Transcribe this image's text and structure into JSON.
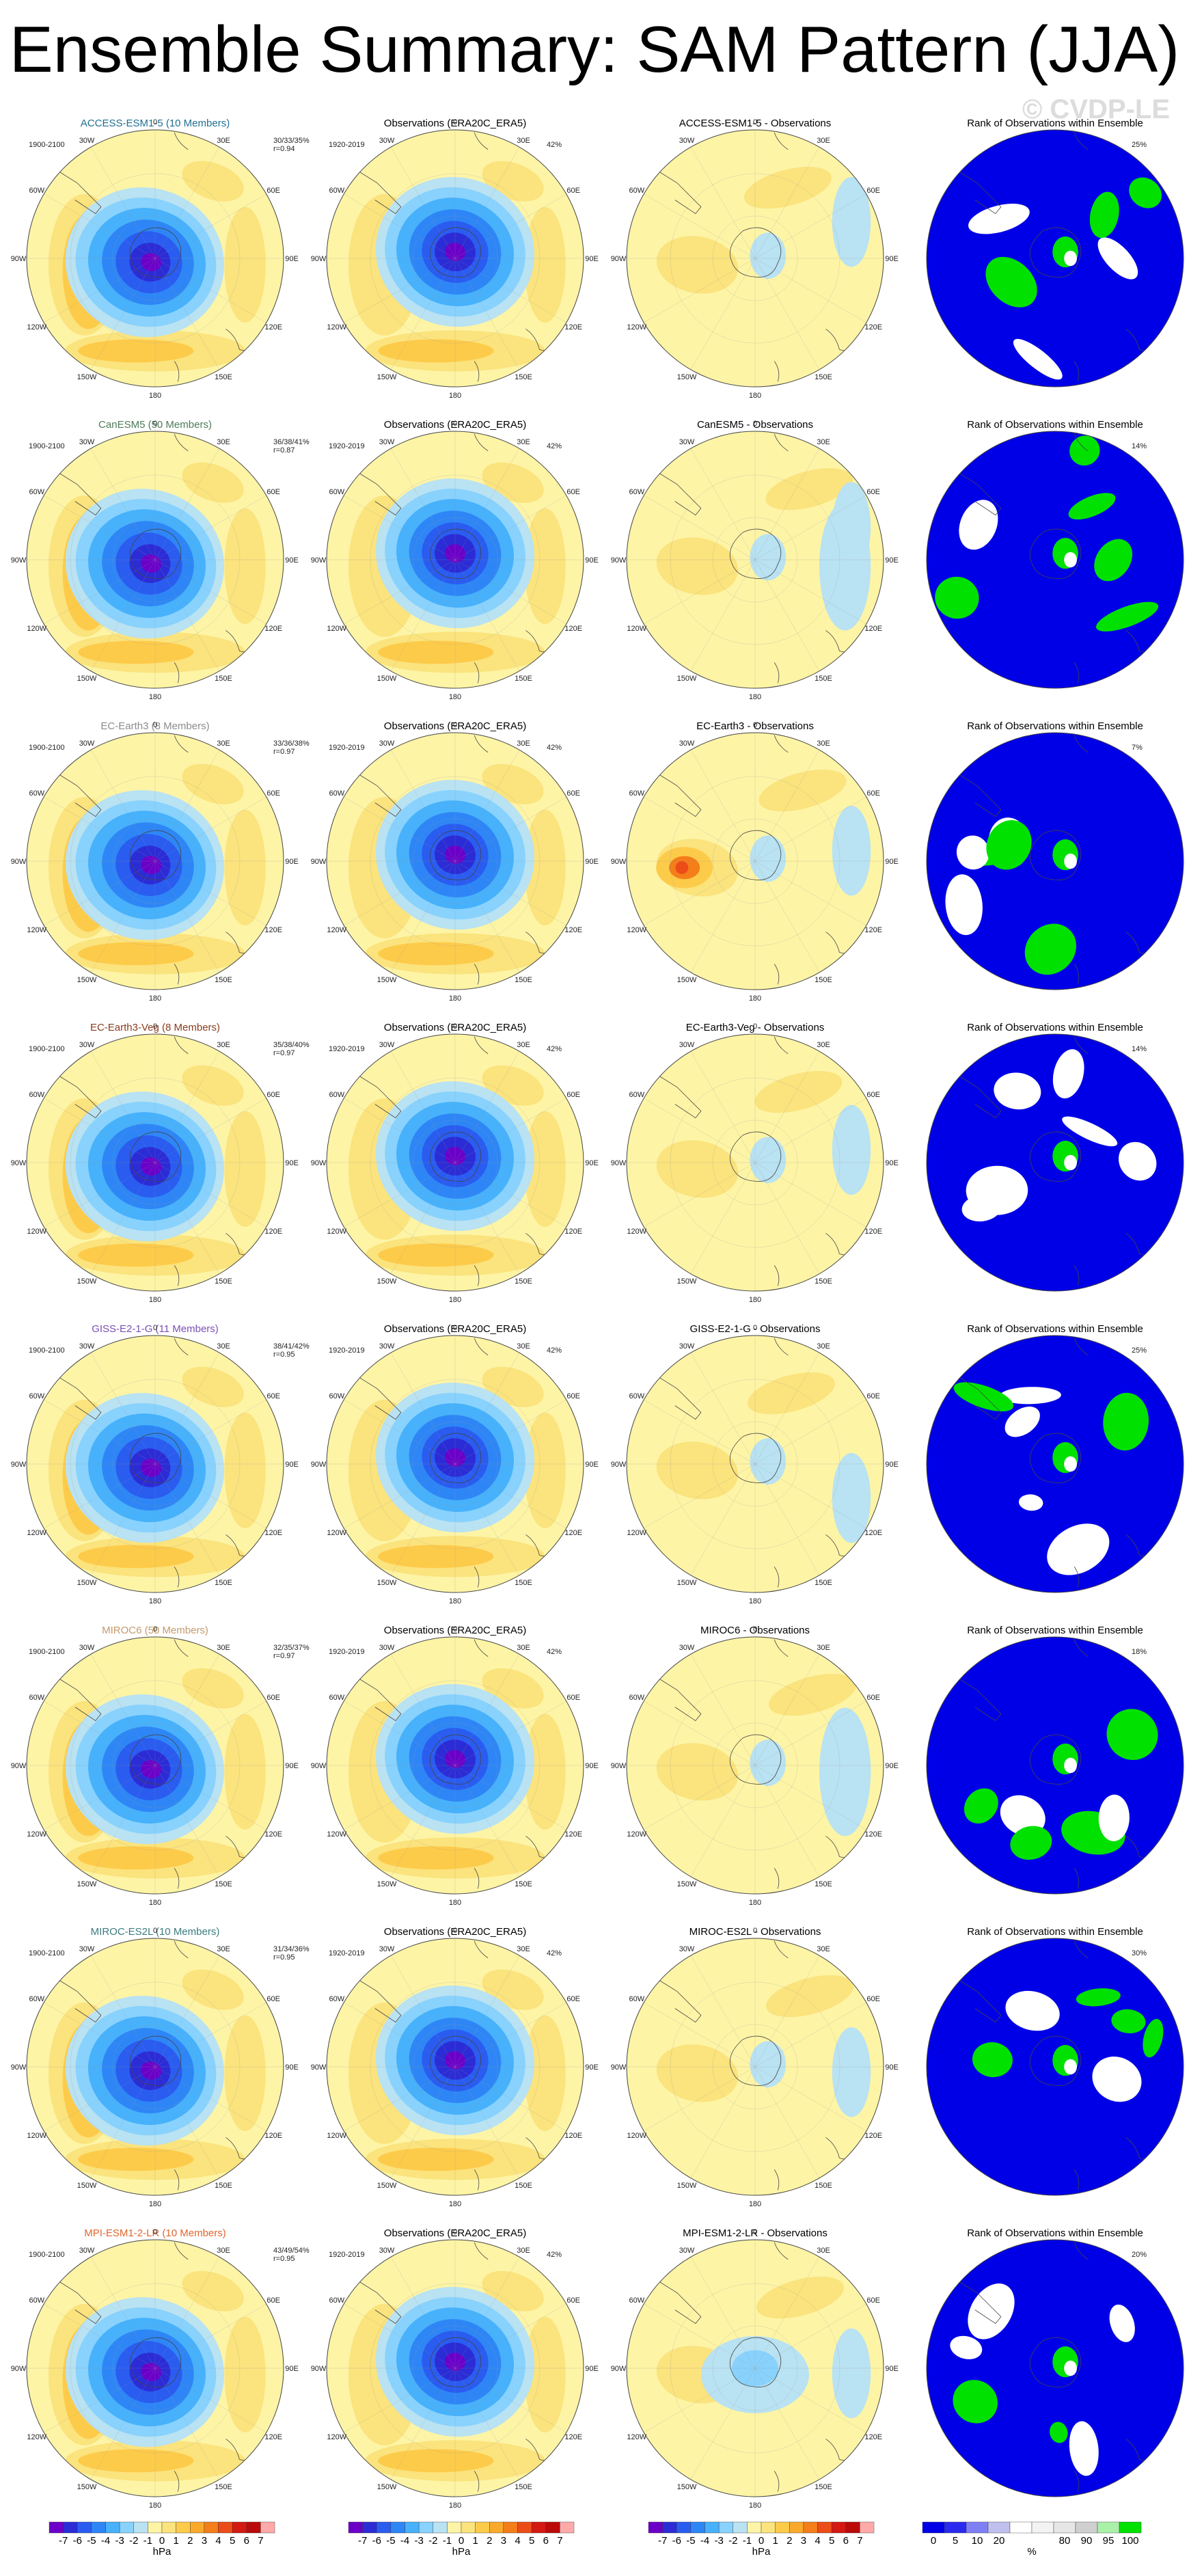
{
  "title": "Ensemble Summary: SAM Pattern (JJA)",
  "watermark": "© CVDP-LE",
  "colors": {
    "pattern_levels": [
      "#6b00c9",
      "#2c2cd6",
      "#2a5cf0",
      "#2e86f6",
      "#47b1fb",
      "#88d2fd",
      "#b9e2f2",
      "#fdf4a6",
      "#fbe37d",
      "#fdcb4a",
      "#faaa2a",
      "#f47e1a",
      "#ec4c17",
      "#d41812",
      "#bb0a0a",
      "#ffa9a9"
    ],
    "rank_levels": [
      "#0000e6",
      "#2a2aef",
      "#7f7ff4",
      "#c0c0ee",
      "#ffffff",
      "#f3f3f3",
      "#e6e6e6",
      "#cfcfcf",
      "#a9f0a9",
      "#00e100"
    ],
    "background": "#fdf4a6",
    "ocean_alt": "#b9e2f2"
  },
  "longitude_labels": [
    "0",
    "30E",
    "60E",
    "90E",
    "120E",
    "150E",
    "180",
    "150W",
    "120W",
    "90W",
    "60W",
    "30W"
  ],
  "obs_title": "Observations (ERA20C_ERA5)",
  "obs_period": "1920-2019",
  "obs_pct": "42%",
  "model_period": "1900-2100",
  "rank_title": "Rank of Observations within Ensemble",
  "rows": [
    {
      "model_title": "ACCESS-ESM1-5 (10 Members)",
      "title_color": "#1f6f91",
      "stats1": "30/33/35%",
      "stats2": "r=0.94",
      "diff_title": "ACCESS-ESM1-5 - Observations",
      "rank_pct": "25%"
    },
    {
      "model_title": "CanESM5 (50 Members)",
      "title_color": "#4c7a58",
      "stats1": "36/38/41%",
      "stats2": "r=0.87",
      "diff_title": "CanESM5 - Observations",
      "rank_pct": "14%"
    },
    {
      "model_title": "EC-Earth3 (8 Members)",
      "title_color": "#8c8c8c",
      "stats1": "33/36/38%",
      "stats2": "r=0.97",
      "diff_title": "EC-Earth3 - Observations",
      "rank_pct": "7%"
    },
    {
      "model_title": "EC-Earth3-Veg (8 Members)",
      "title_color": "#8a3c1e",
      "stats1": "35/38/40%",
      "stats2": "r=0.97",
      "diff_title": "EC-Earth3-Veg - Observations",
      "rank_pct": "14%"
    },
    {
      "model_title": "GISS-E2-1-G (11 Members)",
      "title_color": "#7a4fb5",
      "stats1": "38/41/42%",
      "stats2": "r=0.95",
      "diff_title": "GISS-E2-1-G - Observations",
      "rank_pct": "25%"
    },
    {
      "model_title": "MIROC6 (50 Members)",
      "title_color": "#c49a6c",
      "stats1": "32/35/37%",
      "stats2": "r=0.97",
      "diff_title": "MIROC6 - Observations",
      "rank_pct": "18%"
    },
    {
      "model_title": "MIROC-ES2L (10 Members)",
      "title_color": "#3b7c80",
      "stats1": "31/34/36%",
      "stats2": "r=0.95",
      "diff_title": "MIROC-ES2L - Observations",
      "rank_pct": "30%"
    },
    {
      "model_title": "MPI-ESM1-2-LR (10 Members)",
      "title_color": "#e0662f",
      "stats1": "43/49/54%",
      "stats2": "r=0.95",
      "diff_title": "MPI-ESM1-2-LR - Observations",
      "rank_pct": "20%"
    }
  ],
  "colorbar": {
    "labels": [
      "-7",
      "-6",
      "-5",
      "-4",
      "-3",
      "-2",
      "-1",
      "0",
      "1",
      "2",
      "3",
      "4",
      "5",
      "6",
      "7"
    ],
    "units": "hPa"
  },
  "rank_colorbar": {
    "labels": [
      "0",
      "5",
      "10",
      "20",
      "80",
      "90",
      "95",
      "100"
    ],
    "units": "%"
  }
}
